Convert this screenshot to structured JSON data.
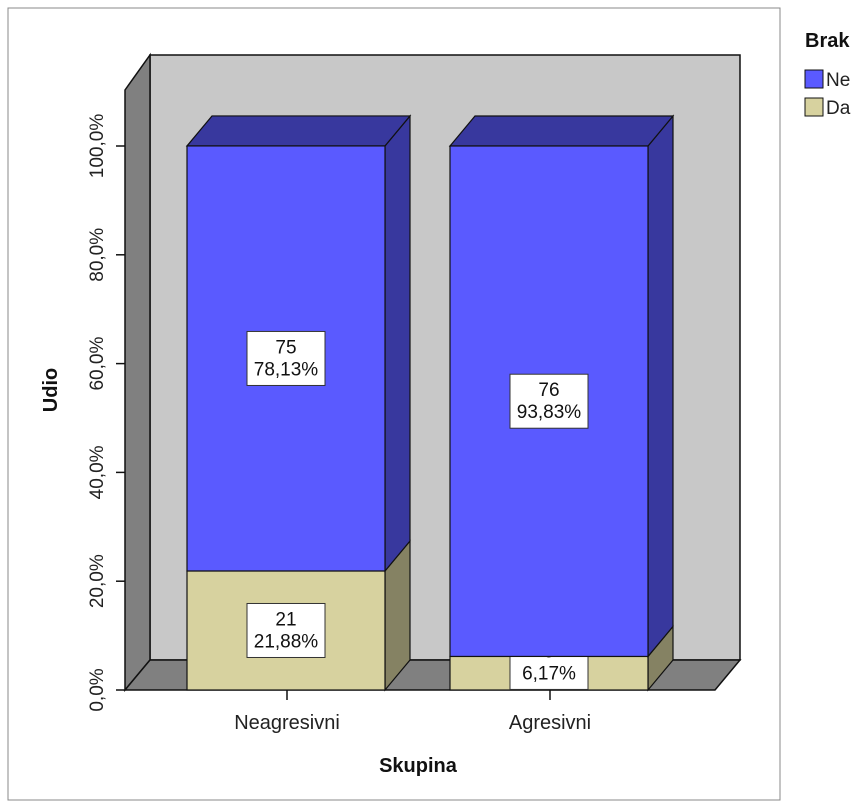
{
  "chart_data": {
    "type": "bar",
    "stacked": true,
    "percent": true,
    "three_d": true,
    "categories": [
      "Neagresivni",
      "Agresivni"
    ],
    "series": [
      {
        "name": "Da",
        "color": "#d7d29f",
        "counts": [
          21,
          5
        ],
        "values": [
          21.88,
          6.17
        ],
        "labels": [
          "21\n21,88%",
          "5\n6,17%"
        ]
      },
      {
        "name": "Ne",
        "color": "#5a5aff",
        "counts": [
          75,
          76
        ],
        "values": [
          78.13,
          93.83
        ],
        "labels": [
          "75\n78,13%",
          "76\n93,83%"
        ]
      }
    ],
    "xlabel": "Skupina",
    "ylabel": "Udio",
    "ylim": [
      0,
      100
    ],
    "yticks": [
      0,
      20,
      40,
      60,
      80,
      100
    ],
    "ytick_labels": [
      "0,0%",
      "20,0%",
      "40,0%",
      "60,0%",
      "80,0%",
      "100,0%"
    ],
    "legend": {
      "title": "Brak",
      "placement": "top-right",
      "order": [
        "Ne",
        "Da"
      ]
    },
    "grid": false
  }
}
